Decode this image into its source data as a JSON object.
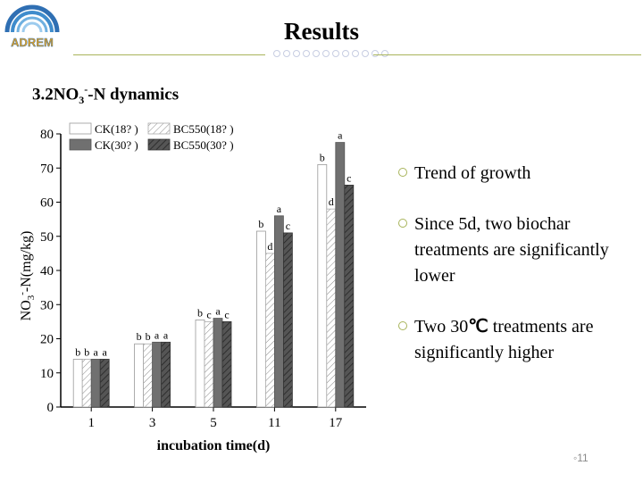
{
  "header": {
    "logo_text": "ADREM",
    "title": "Results"
  },
  "section": {
    "heading_prefix": "3.2NO",
    "heading_sub": "3",
    "heading_sup": "-",
    "heading_suffix": "-N dynamics"
  },
  "bullets": [
    {
      "text": "Trend of growth"
    },
    {
      "text": "Since 5d, two biochar treatments are significantly lower"
    },
    {
      "text_before": "Two 30",
      "deg": "℃",
      "text_after": " treatments are significantly higher"
    }
  ],
  "footer": {
    "page_number": "11"
  },
  "colors": {
    "accent": "#a8b45a",
    "ck18": "#ffffff",
    "ck30": "#707070"
  },
  "chart_data": {
    "type": "bar",
    "title": "",
    "xlabel": "incubation time(d)",
    "ylabel_parts": [
      "NO",
      "3",
      "-",
      "-N(mg/kg)"
    ],
    "categories": [
      "1",
      "3",
      "5",
      "11",
      "17"
    ],
    "ylim": [
      0,
      80
    ],
    "yticks": [
      "0",
      "10",
      "20",
      "30",
      "40",
      "50",
      "60",
      "70",
      "80"
    ],
    "legend_position": "top-left",
    "series": [
      {
        "name": "CK(18? )",
        "values": [
          14,
          18.5,
          25.5,
          51.5,
          71
        ],
        "letters": [
          "b",
          "b",
          "b",
          "b",
          "b"
        ],
        "fill": "plain-white"
      },
      {
        "name": "BC550(18? )",
        "values": [
          14,
          18.5,
          25,
          45,
          58
        ],
        "letters": [
          "b",
          "b",
          "c",
          "d",
          "d"
        ],
        "fill": "hatch-light"
      },
      {
        "name": "CK(30? )",
        "values": [
          14,
          19,
          26,
          56,
          77.5
        ],
        "letters": [
          "a",
          "a",
          "a",
          "a",
          "a"
        ],
        "fill": "solid-gray"
      },
      {
        "name": "BC550(30? )",
        "values": [
          14,
          19,
          25,
          51,
          65
        ],
        "letters": [
          "a",
          "a",
          "c",
          "c",
          "c"
        ],
        "fill": "hatch-dark"
      }
    ]
  }
}
